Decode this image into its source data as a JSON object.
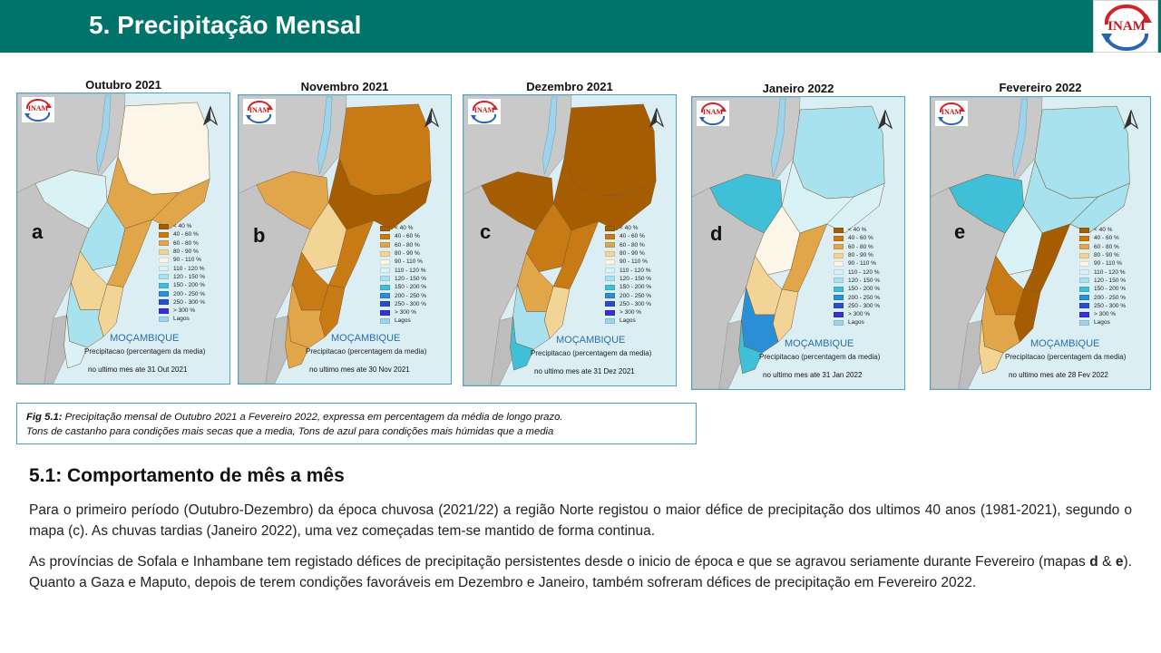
{
  "header": {
    "title": "5. Precipitação Mensal",
    "logo_text": "INAM"
  },
  "maps": [
    {
      "title": "Outubro 2021",
      "letter": "a",
      "logo_text": "INAM",
      "country": "MOÇAMBIQUE",
      "subtitle": "Precipitacao (percentagem da media)",
      "period": "no ultimo mes ate 31 Out 2021"
    },
    {
      "title": "Novembro 2021",
      "letter": "b",
      "logo_text": "INAM",
      "country": "MOÇAMBIQUE",
      "subtitle": "Precipitacao (percentagem da media)",
      "period": "no ultimo mes ate 30 Nov 2021"
    },
    {
      "title": "Dezembro 2021",
      "letter": "c",
      "logo_text": "INAM",
      "country": "MOÇAMBIQUE",
      "subtitle": "Precipitacao (percentagem da media)",
      "period": "no ultimo mes ate 31 Dez 2021"
    },
    {
      "title": "Janeiro 2022",
      "letter": "d",
      "logo_text": "INAM",
      "country": "MOÇAMBIQUE",
      "subtitle": "Precipitacao (percentagem da media)",
      "period": "no ultimo mes ate 31 Jan 2022"
    },
    {
      "title": "Fevereiro 2022",
      "letter": "e",
      "logo_text": "INAM",
      "country": "MOÇAMBIQUE",
      "subtitle": "Precipitacao (percentagem da media)",
      "period": "no ultimo mes ate 28 Fev 2022"
    }
  ],
  "legend": {
    "items": [
      {
        "label": "< 40 %",
        "color": "#a65c00"
      },
      {
        "label": "40 - 60 %",
        "color": "#c87a14"
      },
      {
        "label": "60 - 80 %",
        "color": "#e2a64a"
      },
      {
        "label": "80 - 90 %",
        "color": "#f3d497"
      },
      {
        "label": "90 - 110 %",
        "color": "#fbf6e8"
      },
      {
        "label": "110 - 120 %",
        "color": "#d9f2f6"
      },
      {
        "label": "120 - 150 %",
        "color": "#a8e2ee"
      },
      {
        "label": "150 - 200 %",
        "color": "#3fc0d8"
      },
      {
        "label": "200 - 250 %",
        "color": "#2a8fd6"
      },
      {
        "label": "250 - 300 %",
        "color": "#2a4fc8"
      },
      {
        "label": "> 300 %",
        "color": "#3a2fd0"
      },
      {
        "label": "Lagos",
        "color": "#9fd3ea"
      }
    ]
  },
  "caption": {
    "label": "Fig 5.1:",
    "line1": " Precipitação mensal de Outubro 2021 a Fevereiro 2022,  expressa em percentagem da média de longo prazo.",
    "line2": "Tons de castanho para condições mais secas que a media, Tons de azul para condições mais húmidas que a media"
  },
  "section": {
    "title": "5.1: Comportamento de mês a mês",
    "p1": "Para o primeiro período (Outubro-Dezembro)  da época chuvosa (2021/22) a região Norte registou o maior défice de precipitação dos ultimos 40 anos (1981-2021), segundo o mapa (c). As chuvas tardias (Janeiro 2022), uma vez começadas tem-se mantido de forma continua.",
    "p2_part1": "As províncias de Sofala e Inhambane tem registado défices de precipitação persistentes desde o inicio de época e que se agravou seriamente durante Fevereiro (mapas ",
    "p2_d": "d",
    "p2_amp": " & ",
    "p2_e": "e",
    "p2_part2": "). Quanto a Gaza e Maputo, depois de terem condições favoráveis em Dezembro e Janeiro, também sofreram défices de precipitação em Fevereiro 2022."
  }
}
